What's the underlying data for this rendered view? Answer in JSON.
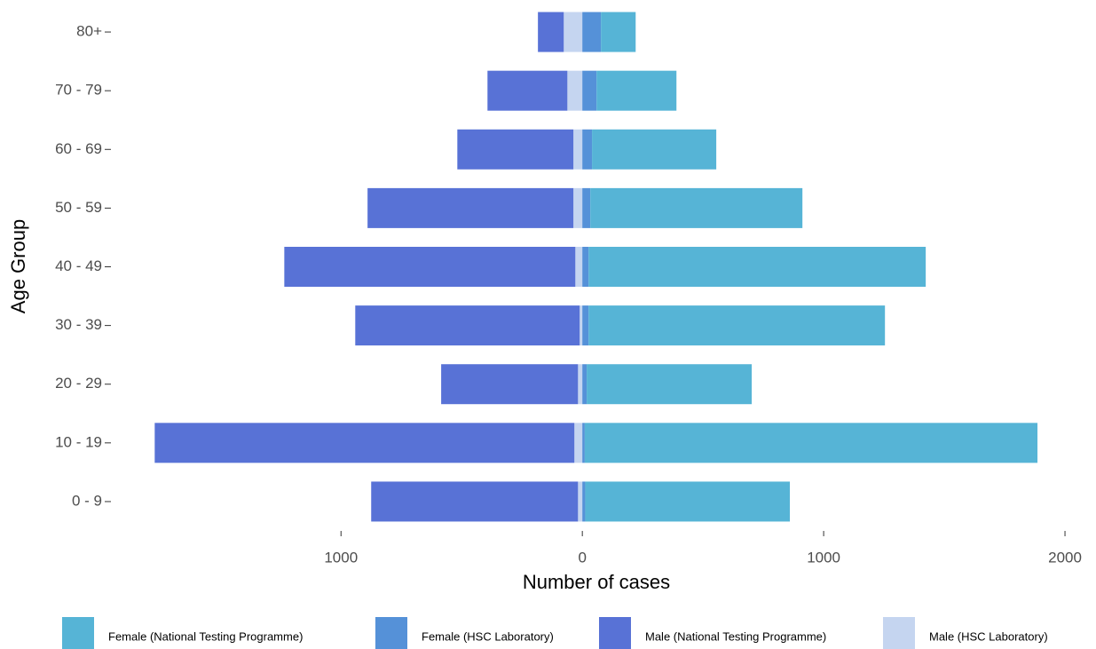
{
  "chart_data": {
    "type": "pyramid",
    "xlabel": "Number of cases",
    "ylabel": "Age Group",
    "categories": [
      "0 - 9",
      "10 - 19",
      "20 - 29",
      "30 - 39",
      "40 - 49",
      "50 - 59",
      "60 - 69",
      "70 - 79",
      "80+"
    ],
    "series": [
      {
        "name": "Female (National Testing Programme)",
        "color": "#56b4d6",
        "values": [
          848,
          1876,
          684,
          1228,
          1397,
          879,
          515,
          331,
          144
        ]
      },
      {
        "name": "Female (HSC Laboratory)",
        "color": "#5591d8",
        "values": [
          12,
          10,
          18,
          26,
          26,
          33,
          40,
          59,
          77
        ]
      },
      {
        "name": "Male (National Testing Programme)",
        "color": "#5872d6",
        "values": [
          -857,
          -1739,
          -567,
          -930,
          -1206,
          -853,
          -481,
          -331,
          -107
        ]
      },
      {
        "name": "Male (HSC Laboratory)",
        "color": "#c5d5f0",
        "values": [
          -18,
          -33,
          -18,
          -11,
          -29,
          -37,
          -37,
          -62,
          -77
        ]
      }
    ],
    "xlim": [
      -1935,
      2055
    ],
    "xticks": [
      {
        "value": -1000,
        "label": "1000"
      },
      0,
      1000,
      2000
    ],
    "grid": false,
    "legend": "bottom"
  }
}
